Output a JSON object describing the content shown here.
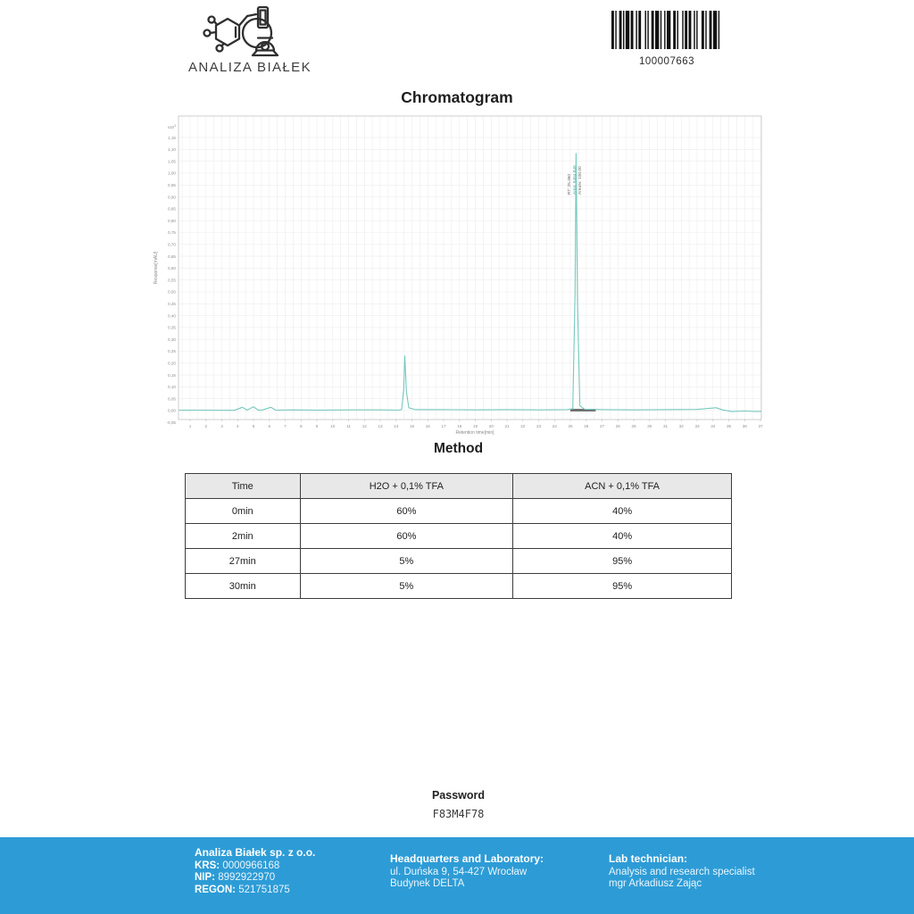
{
  "header": {
    "logo_text": "ANALIZA BIAŁEK",
    "barcode_value": "100007663"
  },
  "chart_data": {
    "type": "line",
    "title": "Chromatogram",
    "xlabel": "Retention time[min]",
    "ylabel": "Response[mAU]",
    "y_scale_label": "x10³",
    "xlim": [
      0.3,
      37.05
    ],
    "ylim": [
      -0.05,
      1.18
    ],
    "x_tick_start": 1,
    "x_tick_end": 37,
    "x_tick_step": 1,
    "y_tick_start": -0.05,
    "y_tick_end": 1.15,
    "y_tick_step": 0.05,
    "grid": true,
    "legend": "none",
    "line_color": "#76c8be",
    "trace": [
      [
        0.3,
        0.002
      ],
      [
        2,
        0.002
      ],
      [
        3.8,
        0.001
      ],
      [
        4.3,
        0.014
      ],
      [
        4.6,
        0.002
      ],
      [
        5.0,
        0.016
      ],
      [
        5.3,
        0.002
      ],
      [
        5.6,
        0.003
      ],
      [
        6.1,
        0.014
      ],
      [
        6.4,
        0.002
      ],
      [
        7.5,
        0.003
      ],
      [
        9,
        0.002
      ],
      [
        11,
        0.003
      ],
      [
        13,
        0.003
      ],
      [
        14.1,
        0.002
      ],
      [
        14.35,
        0.004
      ],
      [
        14.48,
        0.09
      ],
      [
        14.55,
        0.23
      ],
      [
        14.65,
        0.08
      ],
      [
        14.8,
        0.012
      ],
      [
        15.2,
        0.004
      ],
      [
        17,
        0.004
      ],
      [
        19,
        0.003
      ],
      [
        21,
        0.004
      ],
      [
        23,
        0.003
      ],
      [
        24.8,
        0.004
      ],
      [
        25.15,
        0.008
      ],
      [
        25.3,
        0.5
      ],
      [
        25.36,
        1.083
      ],
      [
        25.45,
        0.45
      ],
      [
        25.6,
        0.02
      ],
      [
        25.9,
        0.006
      ],
      [
        27,
        0.004
      ],
      [
        29,
        0.003
      ],
      [
        31,
        0.004
      ],
      [
        33,
        0.005
      ],
      [
        34.2,
        0.012
      ],
      [
        34.6,
        0.003
      ],
      [
        35.2,
        -0.004
      ],
      [
        36,
        -0.002
      ],
      [
        36.8,
        -0.004
      ],
      [
        37.05,
        -0.003
      ]
    ],
    "peaks": [
      {
        "rt": 14.55,
        "height": 0.23,
        "labels": []
      },
      {
        "rt": 25.36,
        "height": 1.083,
        "labels": [
          "RT: 25.360",
          "Area: 9464.846",
          "Area%: 100.00"
        ]
      }
    ]
  },
  "method": {
    "title": "Method",
    "table": {
      "headers": [
        "Time",
        "H2O + 0,1% TFA",
        "ACN + 0,1% TFA"
      ],
      "rows": [
        [
          "0min",
          "60%",
          "40%"
        ],
        [
          "2min",
          "60%",
          "40%"
        ],
        [
          "27min",
          "5%",
          "95%"
        ],
        [
          "30min",
          "5%",
          "95%"
        ]
      ]
    }
  },
  "password": {
    "label": "Password",
    "value": "F83M4F78"
  },
  "footer": {
    "background_color": "#2d9cd6",
    "company": {
      "name": "Analiza Białek sp. z o.o.",
      "krs_label": "KRS:",
      "krs_value": "0000966168",
      "nip_label": "NIP:",
      "nip_value": "8992922970",
      "regon_label": "REGON:",
      "regon_value": "521751875"
    },
    "address": {
      "heading": "Headquarters and Laboratory:",
      "line1": "ul. Duńska 9, 54-427 Wrocław",
      "line2": "Budynek DELTA"
    },
    "technician": {
      "heading": "Lab technician:",
      "line1": "Analysis and research specialist",
      "line2": "mgr Arkadiusz Zając"
    }
  }
}
